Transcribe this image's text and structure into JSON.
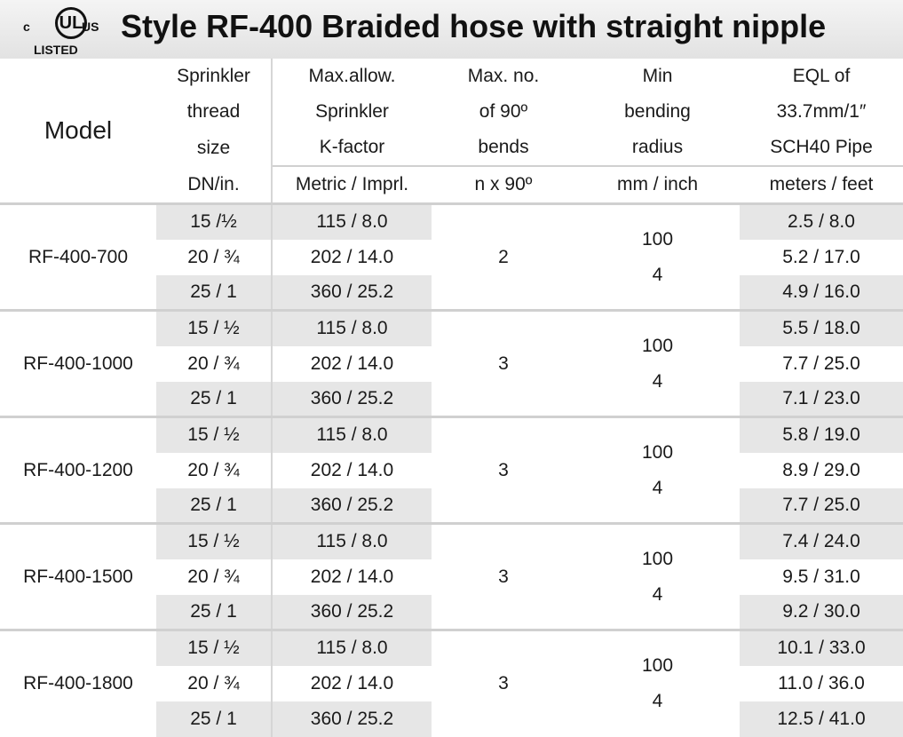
{
  "header": {
    "title": "Style RF-400 Braided hose with straight nipple",
    "logo": {
      "c": "c",
      "ul": "UL",
      "us": "US",
      "listed": "LISTED"
    }
  },
  "columns": {
    "model": "Model",
    "thread": [
      "Sprinkler",
      "thread",
      "size",
      "DN/in."
    ],
    "kfactor": [
      "Max.allow.",
      "Sprinkler",
      "K-factor",
      "Metric / Imprl."
    ],
    "bends": [
      "Max. no.",
      "of 90º",
      "bends",
      "n x 90º"
    ],
    "radius": [
      "Min",
      "bending",
      "radius",
      "mm / inch"
    ],
    "eql": [
      "EQL of",
      "33.7mm/1″",
      "SCH40 Pipe",
      "meters / feet"
    ]
  },
  "groups": [
    {
      "model": "RF-400-700",
      "bends": "2",
      "radius_mm": "100",
      "radius_in": "4",
      "rows": [
        {
          "thread": "15 /½",
          "kfactor": "115 / 8.0",
          "eql": "2.5 / 8.0"
        },
        {
          "thread": "20 / ¾",
          "kfactor": "202 / 14.0",
          "eql": "5.2 / 17.0"
        },
        {
          "thread": "25 / 1",
          "kfactor": "360 / 25.2",
          "eql": "4.9 / 16.0"
        }
      ]
    },
    {
      "model": "RF-400-1000",
      "bends": "3",
      "radius_mm": "100",
      "radius_in": "4",
      "rows": [
        {
          "thread": "15 / ½",
          "kfactor": "115 / 8.0",
          "eql": "5.5 / 18.0"
        },
        {
          "thread": "20 / ¾",
          "kfactor": "202 / 14.0",
          "eql": "7.7 / 25.0"
        },
        {
          "thread": "25 / 1",
          "kfactor": "360 / 25.2",
          "eql": "7.1 / 23.0"
        }
      ]
    },
    {
      "model": "RF-400-1200",
      "bends": "3",
      "radius_mm": "100",
      "radius_in": "4",
      "rows": [
        {
          "thread": "15 / ½",
          "kfactor": "115 / 8.0",
          "eql": "5.8 / 19.0"
        },
        {
          "thread": "20 / ¾",
          "kfactor": "202 / 14.0",
          "eql": "8.9 / 29.0"
        },
        {
          "thread": "25 / 1",
          "kfactor": "360 / 25.2",
          "eql": "7.7 / 25.0"
        }
      ]
    },
    {
      "model": "RF-400-1500",
      "bends": "3",
      "radius_mm": "100",
      "radius_in": "4",
      "rows": [
        {
          "thread": "15 / ½",
          "kfactor": "115 / 8.0",
          "eql": "7.4 / 24.0"
        },
        {
          "thread": "20 / ¾",
          "kfactor": "202 / 14.0",
          "eql": "9.5 / 31.0"
        },
        {
          "thread": "25 / 1",
          "kfactor": "360 / 25.2",
          "eql": "9.2 / 30.0"
        }
      ]
    },
    {
      "model": "RF-400-1800",
      "bends": "3",
      "radius_mm": "100",
      "radius_in": "4",
      "rows": [
        {
          "thread": "15 / ½",
          "kfactor": "115 / 8.0",
          "eql": "10.1 / 33.0"
        },
        {
          "thread": "20 / ¾",
          "kfactor": "202 / 14.0",
          "eql": "11.0 / 36.0"
        },
        {
          "thread": "25 / 1",
          "kfactor": "360 / 25.2",
          "eql": "12.5 / 41.0"
        }
      ]
    }
  ]
}
